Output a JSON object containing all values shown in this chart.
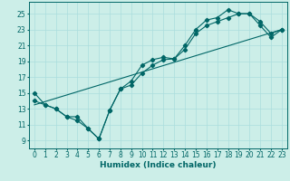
{
  "xlabel": "Humidex (Indice chaleur)",
  "bg_color": "#cceee8",
  "line_color": "#006666",
  "xlim": [
    -0.5,
    23.5
  ],
  "ylim": [
    8.0,
    26.5
  ],
  "xticks": [
    0,
    1,
    2,
    3,
    4,
    5,
    6,
    7,
    8,
    9,
    10,
    11,
    12,
    13,
    14,
    15,
    16,
    17,
    18,
    19,
    20,
    21,
    22,
    23
  ],
  "yticks": [
    9,
    11,
    13,
    15,
    17,
    19,
    21,
    23,
    25
  ],
  "line1_x": [
    0,
    1,
    2,
    3,
    4,
    5,
    6,
    7,
    8,
    9,
    10,
    11,
    12,
    13,
    14,
    15,
    16,
    17,
    18,
    19,
    20,
    21,
    22,
    23
  ],
  "line1_y": [
    15,
    13.5,
    13,
    12,
    12,
    10.5,
    9.2,
    12.8,
    15.5,
    16,
    17.5,
    18.5,
    19.2,
    19.3,
    21,
    23,
    24.2,
    24.5,
    25.5,
    25,
    25,
    24,
    22.5,
    23
  ],
  "line2_x": [
    0,
    1,
    2,
    3,
    4,
    5,
    6,
    7,
    8,
    9,
    10,
    11,
    12,
    13,
    14,
    15,
    16,
    17,
    18,
    19,
    20,
    21,
    22,
    23
  ],
  "line2_y": [
    14,
    13.5,
    13,
    12,
    11.5,
    10.5,
    9.2,
    12.8,
    15.5,
    16.5,
    18.5,
    19.2,
    19.5,
    19.3,
    20.5,
    22.5,
    23.5,
    24,
    24.5,
    25,
    25,
    23.5,
    22,
    23
  ],
  "trend_x": [
    0,
    23
  ],
  "trend_y": [
    13.5,
    23
  ],
  "marker_size": 2.2,
  "grid_color": "#aadddd",
  "xlabel_fontsize": 6.5,
  "tick_fontsize": 5.5,
  "linewidth": 0.8
}
